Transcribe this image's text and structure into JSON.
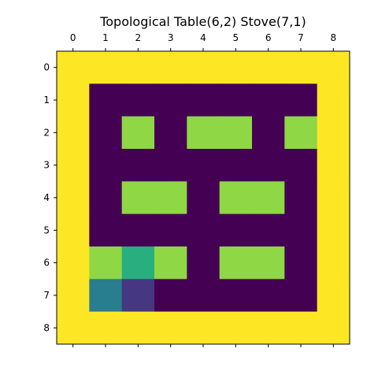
{
  "figure": {
    "title": "Topological Table(6,2) Stove(7,1)"
  },
  "grid": {
    "rows": 9,
    "cols": 9,
    "x_ticks": [
      "0",
      "1",
      "2",
      "3",
      "4",
      "5",
      "6",
      "7",
      "8"
    ],
    "y_ticks": [
      "0",
      "1",
      "2",
      "3",
      "4",
      "5",
      "6",
      "7",
      "8"
    ],
    "colormap": {
      "0": "#440154",
      "1": "#8fd744",
      "2": "#fde725",
      "3": "#29af7f",
      "4": "#287d8e",
      "5": "#453781"
    },
    "cells": [
      [
        2,
        2,
        2,
        2,
        2,
        2,
        2,
        2,
        2
      ],
      [
        2,
        0,
        0,
        0,
        0,
        0,
        0,
        0,
        2
      ],
      [
        2,
        0,
        1,
        0,
        1,
        1,
        0,
        1,
        2
      ],
      [
        2,
        0,
        0,
        0,
        0,
        0,
        0,
        0,
        2
      ],
      [
        2,
        0,
        1,
        1,
        0,
        1,
        1,
        0,
        2
      ],
      [
        2,
        0,
        0,
        0,
        0,
        0,
        0,
        0,
        2
      ],
      [
        2,
        1,
        3,
        1,
        0,
        1,
        1,
        0,
        2
      ],
      [
        2,
        4,
        5,
        0,
        0,
        0,
        0,
        0,
        2
      ],
      [
        2,
        2,
        2,
        2,
        2,
        2,
        2,
        2,
        2
      ]
    ]
  }
}
